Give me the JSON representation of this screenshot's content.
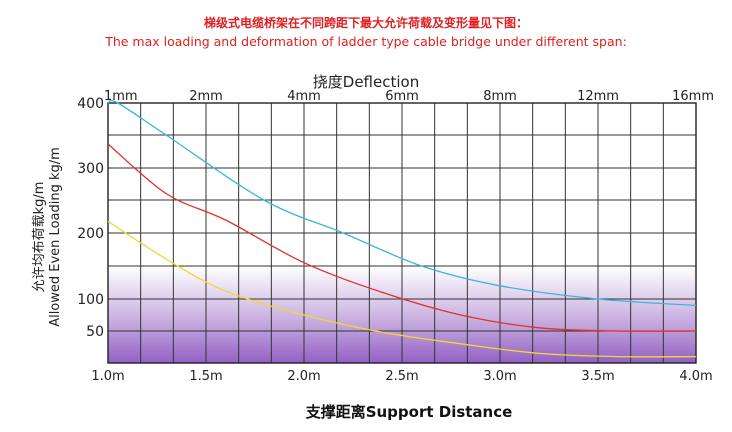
{
  "title_cn": "梯级式电缆桥架在不同跨距下最大允许荷载及变形量见下图：",
  "title_en": "The max loading and deformation of ladder type cable bridge under different span:",
  "chart_data": {
    "type": "line",
    "title": "The max loading and deformation of ladder type cable bridge under different span:",
    "xlabel": "支撑距离Support Distance",
    "ylabel_cn": "允许均布荷载kg/m",
    "ylabel_en": "Allowed Even Loading kg/m",
    "top_axis_label": "挠度Deflection",
    "x_ticks": [
      {
        "x": 1.0,
        "label": "1.0m"
      },
      {
        "x": 1.5,
        "label": "1.5m"
      },
      {
        "x": 2.0,
        "label": "2.0m"
      },
      {
        "x": 2.5,
        "label": "2.5m"
      },
      {
        "x": 3.0,
        "label": "3.0m"
      },
      {
        "x": 3.5,
        "label": "3.5m"
      },
      {
        "x": 4.0,
        "label": "4.0m"
      }
    ],
    "top_ticks": [
      {
        "x": 1.0,
        "label": "1mm"
      },
      {
        "x": 1.5,
        "label": "2mm"
      },
      {
        "x": 2.0,
        "label": "4mm"
      },
      {
        "x": 2.5,
        "label": "6mm"
      },
      {
        "x": 3.0,
        "label": "8mm"
      },
      {
        "x": 3.5,
        "label": "12mm"
      },
      {
        "x": 4.0,
        "label": "16mm"
      }
    ],
    "y_ticks": [
      {
        "y": 50,
        "label": "50"
      },
      {
        "y": 100,
        "label": "100"
      },
      {
        "y": 200,
        "label": "200"
      },
      {
        "y": 300,
        "label": "300"
      },
      {
        "y": 400,
        "label": "400"
      }
    ],
    "xlim": [
      1.0,
      4.0
    ],
    "ylim": [
      0,
      400
    ],
    "grid": true,
    "series": [
      {
        "color": "#3ab6e0",
        "x": [
          1.0,
          1.05,
          1.3,
          1.8,
          2.2,
          2.6,
          3.0,
          3.5,
          4.0
        ],
        "y": [
          400,
          400,
          350,
          250,
          200,
          150,
          120,
          100,
          90
        ]
      },
      {
        "color": "#e0312a",
        "x": [
          1.0,
          1.3,
          1.6,
          2.0,
          2.4,
          2.8,
          3.2,
          3.6,
          4.0
        ],
        "y": [
          337,
          260,
          220,
          155,
          110,
          75,
          55,
          50,
          50
        ]
      },
      {
        "color": "#f0d832",
        "x": [
          1.0,
          1.3,
          1.6,
          2.0,
          2.4,
          2.8,
          3.2,
          3.6,
          4.0
        ],
        "y": [
          218,
          160,
          112,
          75,
          48,
          30,
          15,
          10,
          10
        ]
      }
    ]
  }
}
